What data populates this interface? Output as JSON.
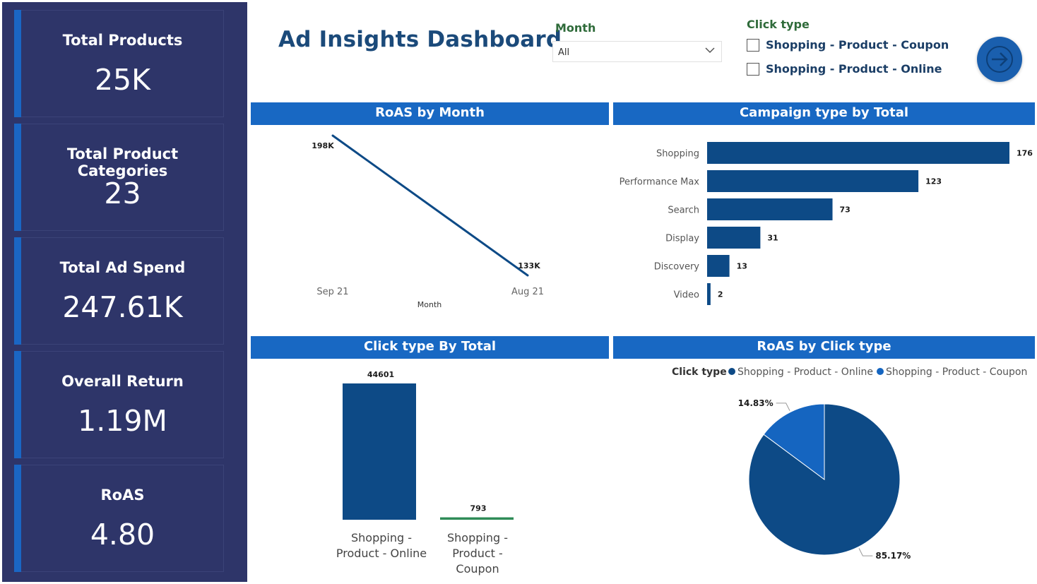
{
  "kpis": [
    {
      "label": "Total Products",
      "value": "25K"
    },
    {
      "label": "Total Product Categories",
      "value": "23"
    },
    {
      "label": "Total Ad Spend",
      "value": "247.61K"
    },
    {
      "label": "Overall Return",
      "value": "1.19M"
    },
    {
      "label": "RoAS",
      "value": "4.80"
    }
  ],
  "header": {
    "title": "Ad Insights Dashboard",
    "month_filter": {
      "label": "Month",
      "selected": "All"
    },
    "click_filter": {
      "label": "Click type",
      "options": [
        "Shopping - Product - Coupon",
        "Shopping - Product - Online"
      ]
    },
    "go_icon": "arrow-right-icon"
  },
  "colors": {
    "sidebar": "#2e3569",
    "accent": "#1a66c4",
    "panel_header": "#1868c3",
    "bar_dark": "#0d4a86",
    "pie_light": "#1565c0",
    "coupon_line": "#2e8b57"
  },
  "chart_data": [
    {
      "id": "roas_by_month",
      "type": "line",
      "title": "RoAS by Month",
      "xlabel": "Month",
      "ylabel": "",
      "x": [
        "Sep 21",
        "Aug 21"
      ],
      "values": [
        198000,
        133000
      ],
      "data_labels": [
        "198K",
        "133K"
      ],
      "grid": false
    },
    {
      "id": "campaign_type_by_total",
      "type": "bar",
      "orientation": "horizontal",
      "title": "Campaign type by Total",
      "categories": [
        "Shopping",
        "Performance Max",
        "Search",
        "Display",
        "Discovery",
        "Video"
      ],
      "values": [
        176,
        123,
        73,
        31,
        13,
        2
      ],
      "grid": false
    },
    {
      "id": "click_type_by_total",
      "type": "bar",
      "title": "Click type By Total",
      "categories": [
        "Shopping - Product - Online",
        "Shopping - Product - Coupon"
      ],
      "category_lines": [
        [
          "Shopping -",
          "Product - Online"
        ],
        [
          "Shopping -",
          "Product -",
          "Coupon"
        ]
      ],
      "values": [
        44601,
        793
      ],
      "grid": false
    },
    {
      "id": "roas_by_click_type",
      "type": "pie",
      "title": "RoAS by Click type",
      "legend_title": "Click type",
      "legend_position": "top",
      "slices": [
        {
          "name": "Shopping - Product - Online",
          "value": 85.17,
          "label": "85.17%"
        },
        {
          "name": "Shopping - Product - Coupon",
          "value": 14.83,
          "label": "14.83%"
        }
      ]
    }
  ]
}
